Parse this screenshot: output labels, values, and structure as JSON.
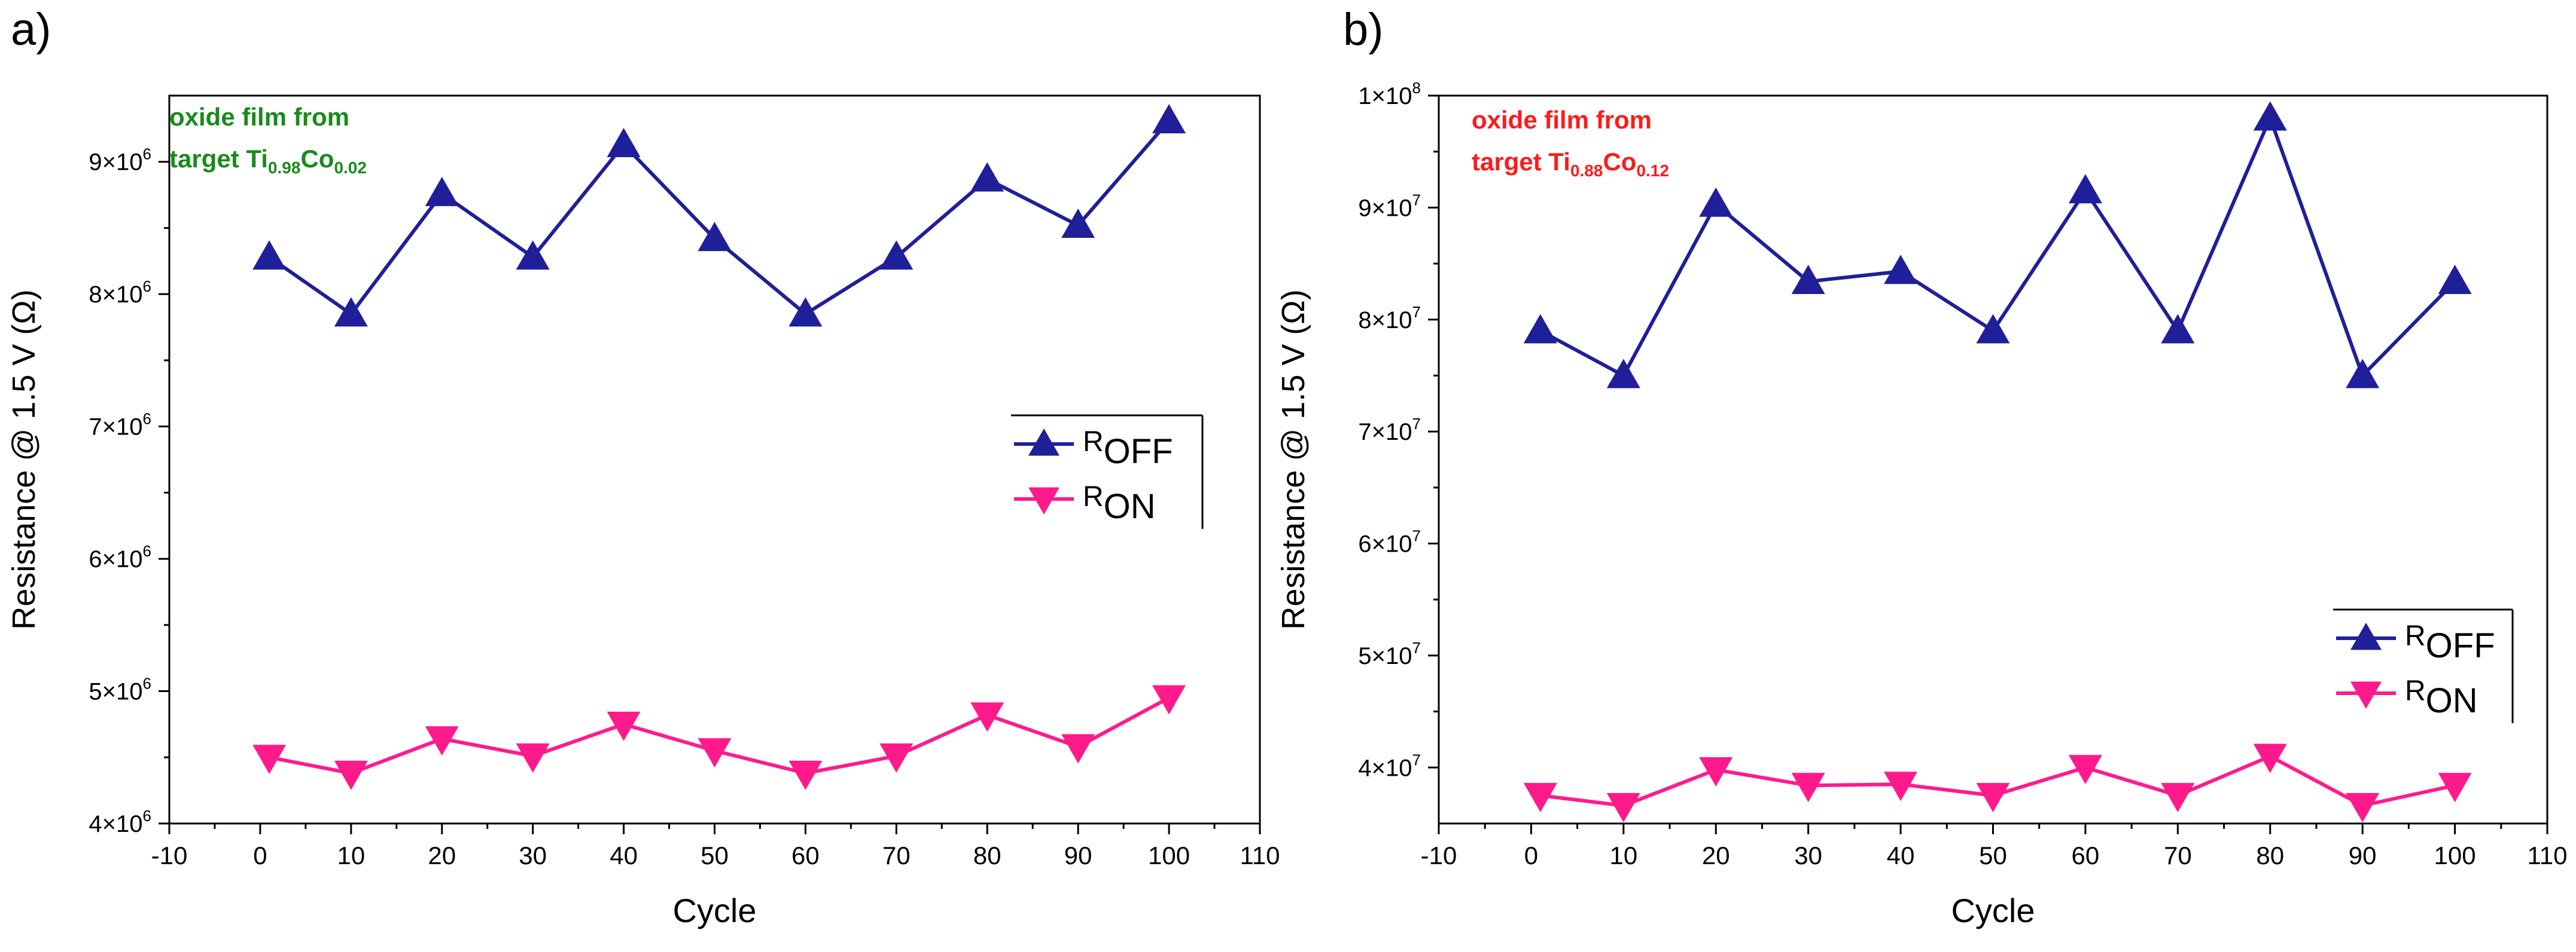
{
  "panels": [
    {
      "panel_label": "a)",
      "annotation": {
        "line1": "oxide film from",
        "prefix": "target Ti",
        "sub1": "0.98",
        "mid": "Co",
        "sub2": "0.02",
        "color": "#1a8a1a"
      },
      "ytick_labels": [
        "4×10",
        "5×10",
        "6×10",
        "7×10",
        "8×10",
        "9×10"
      ],
      "ytick_exponent": "6"
    },
    {
      "panel_label": "b)",
      "annotation": {
        "line1": "oxide film from",
        "prefix": "target Ti",
        "sub1": "0.88",
        "mid": "Co",
        "sub2": "0.12",
        "color": "#ff1a1a"
      },
      "ytick_labels": [
        "4×10",
        "5×10",
        "6×10",
        "7×10",
        "8×10",
        "9×10",
        "1×10"
      ],
      "ytick_exponent_list": [
        "7",
        "7",
        "7",
        "7",
        "7",
        "7",
        "8"
      ]
    }
  ],
  "legend": {
    "roff_main": "R",
    "roff_sub": "OFF",
    "ron_main": "R",
    "ron_sub": "ON"
  },
  "colors": {
    "roff": "#1f1f9a",
    "ron": "#ff1a8c"
  },
  "chart_data": [
    {
      "type": "line",
      "title": "",
      "xlabel": "Cycle",
      "ylabel": "Resistance @ 1.5 V (Ω)",
      "xlim": [
        -10,
        110
      ],
      "ylim": [
        4000000,
        9500000
      ],
      "xticks": [
        -10,
        0,
        10,
        20,
        30,
        40,
        50,
        60,
        70,
        80,
        90,
        100,
        110
      ],
      "yticks": [
        4000000,
        5000000,
        6000000,
        7000000,
        8000000,
        9000000
      ],
      "grid": false,
      "legend_position": "right",
      "x": [
        1,
        10,
        20,
        30,
        40,
        50,
        60,
        70,
        80,
        90,
        100
      ],
      "series": [
        {
          "name": "ROFF",
          "marker": "triangle-up",
          "values": [
            8280000,
            7850000,
            8760000,
            8280000,
            9130000,
            8420000,
            7850000,
            8280000,
            8870000,
            8520000,
            9310000
          ]
        },
        {
          "name": "RON",
          "marker": "triangle-down",
          "values": [
            4500000,
            4380000,
            4640000,
            4510000,
            4750000,
            4550000,
            4380000,
            4510000,
            4820000,
            4580000,
            4950000
          ]
        }
      ]
    },
    {
      "type": "line",
      "title": "",
      "xlabel": "Cycle",
      "ylabel": "Resistance @ 1.5 V (Ω)",
      "xlim": [
        -10,
        110
      ],
      "ylim": [
        35000000,
        100000000
      ],
      "xticks": [
        -10,
        0,
        10,
        20,
        30,
        40,
        50,
        60,
        70,
        80,
        90,
        100,
        110
      ],
      "yticks": [
        40000000,
        50000000,
        60000000,
        70000000,
        80000000,
        90000000,
        100000000
      ],
      "grid": false,
      "legend_position": "bottom-right",
      "x": [
        1,
        10,
        20,
        30,
        40,
        50,
        60,
        70,
        80,
        90,
        100
      ],
      "series": [
        {
          "name": "ROFF",
          "marker": "triangle-up",
          "values": [
            79000000,
            75000000,
            90300000,
            83400000,
            84300000,
            79000000,
            91500000,
            79000000,
            98000000,
            75000000,
            83400000
          ]
        },
        {
          "name": "RON",
          "marker": "triangle-down",
          "values": [
            37500000,
            36600000,
            39800000,
            38400000,
            38500000,
            37500000,
            40000000,
            37500000,
            41000000,
            36600000,
            38400000
          ]
        }
      ]
    }
  ]
}
